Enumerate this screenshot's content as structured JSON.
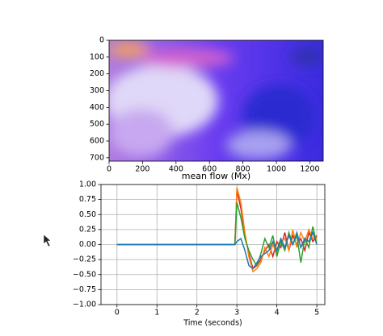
{
  "chart_data": [
    {
      "type": "image",
      "xlabel": "mean flow (Mx)",
      "xlim": [
        0,
        1280
      ],
      "xticks": [
        0,
        200,
        400,
        600,
        800,
        1000,
        1200
      ],
      "ylim": [
        720,
        0
      ],
      "yticks": [
        0,
        100,
        200,
        300,
        400,
        500,
        600,
        700
      ],
      "grid": false
    },
    {
      "type": "line",
      "xlabel": "Time (seconds)",
      "xlim": [
        -0.4,
        5.2
      ],
      "xticks": [
        0,
        1,
        2,
        3,
        4,
        5
      ],
      "ylim": [
        -1,
        1
      ],
      "yticks": [
        {
          "value": -1,
          "label": "−1.00"
        },
        {
          "value": -0.75,
          "label": "−0.75"
        },
        {
          "value": -0.5,
          "label": "−0.50"
        },
        {
          "value": -0.25,
          "label": "−0.25"
        },
        {
          "value": 0,
          "label": "0.00"
        },
        {
          "value": 0.25,
          "label": "0.25"
        },
        {
          "value": 0.5,
          "label": "0.50"
        },
        {
          "value": 0.75,
          "label": "0.75"
        },
        {
          "value": 1,
          "label": "1.00"
        }
      ],
      "grid": true,
      "x": [
        0,
        2.95,
        3.0,
        3.1,
        3.2,
        3.3,
        3.4,
        3.5,
        3.6,
        3.7,
        3.8,
        3.9,
        4.0,
        4.1,
        4.2,
        4.3,
        4.4,
        4.5,
        4.6,
        4.7,
        4.8,
        4.9,
        5.0
      ],
      "series": [
        {
          "color": "#d62728",
          "values": [
            0,
            0,
            0.9,
            0.6,
            0.15,
            -0.15,
            -0.4,
            -0.35,
            -0.25,
            -0.1,
            0.0,
            -0.2,
            0.05,
            -0.05,
            0.2,
            -0.1,
            0.15,
            0.0,
            0.1,
            -0.1,
            0.2,
            0.05,
            0.15
          ]
        },
        {
          "color": "#ff7f0e",
          "values": [
            0,
            0,
            0.95,
            0.7,
            0.2,
            -0.2,
            -0.45,
            -0.4,
            -0.3,
            -0.05,
            -0.2,
            0.0,
            -0.15,
            0.05,
            0.1,
            -0.1,
            0.25,
            -0.05,
            0.2,
            0.05,
            0.25,
            0.1,
            0.1
          ]
        },
        {
          "color": "#2ca02c",
          "values": [
            0,
            0,
            0.7,
            0.45,
            0.1,
            -0.1,
            -0.25,
            -0.35,
            -0.15,
            0.1,
            -0.05,
            0.15,
            -0.2,
            0.05,
            -0.1,
            0.2,
            0.0,
            0.15,
            -0.3,
            0.1,
            -0.05,
            0.3,
            0.0
          ]
        },
        {
          "color": "#1f77b4",
          "values": [
            0,
            0,
            0.05,
            0.1,
            -0.1,
            -0.35,
            -0.4,
            -0.3,
            -0.2,
            -0.15,
            -0.1,
            0.05,
            -0.1,
            0.1,
            -0.05,
            0.15,
            0.0,
            0.2,
            -0.05,
            0.1,
            0.05,
            0.2,
            0.0
          ]
        }
      ]
    }
  ]
}
